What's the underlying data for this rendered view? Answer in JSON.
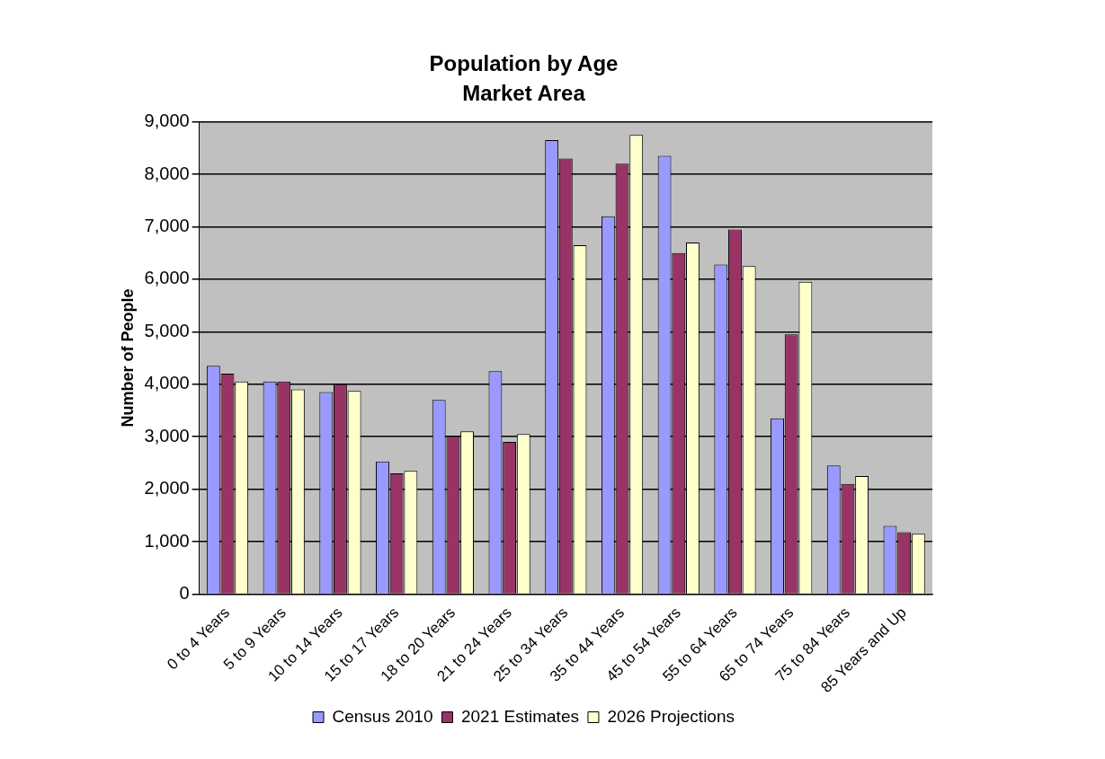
{
  "chart_data": {
    "type": "bar",
    "title": "Population by Age",
    "subtitle": "Market Area",
    "ylabel": "Number of People",
    "categories": [
      "0 to 4 Years",
      "5 to 9 Years",
      "10 to 14 Years",
      "15 to 17 Years",
      "18 to 20 Years",
      "21 to 24 Years",
      "25 to 34 Years",
      "35 to 44 Years",
      "45 to 54 Years",
      "55 to 64 Years",
      "65 to 74 Years",
      "75 to 84 Years",
      "85 Years and Up"
    ],
    "series": [
      {
        "name": "Census 2010",
        "color": "#9999ff",
        "values": [
          4350,
          4050,
          3850,
          2530,
          3700,
          4250,
          8650,
          7200,
          8350,
          6280,
          3350,
          2450,
          1300
        ]
      },
      {
        "name": "2021 Estimates",
        "color": "#993366",
        "values": [
          4200,
          4050,
          4000,
          2300,
          3000,
          2900,
          8300,
          8200,
          6500,
          6950,
          4950,
          2100,
          1180
        ]
      },
      {
        "name": "2026 Projections",
        "color": "#ffffcc",
        "values": [
          4050,
          3900,
          3870,
          2350,
          3100,
          3050,
          6650,
          8750,
          6700,
          6250,
          5950,
          2250,
          1150
        ]
      }
    ],
    "ylim": [
      0,
      9000
    ],
    "yticks": [
      0,
      {
        "value": 1000,
        "label": "1,000"
      },
      {
        "value": 2000,
        "label": "2,000"
      },
      {
        "value": 3000,
        "label": "3,000"
      },
      {
        "value": 4000,
        "label": "4,000"
      },
      {
        "value": 5000,
        "label": "5,000"
      },
      {
        "value": 6000,
        "label": "6,000"
      },
      {
        "value": 7000,
        "label": "7,000"
      },
      {
        "value": 8000,
        "label": "8,000"
      },
      {
        "value": 9000,
        "label": "9,000"
      }
    ],
    "grid": "y",
    "legend": "bottom"
  }
}
